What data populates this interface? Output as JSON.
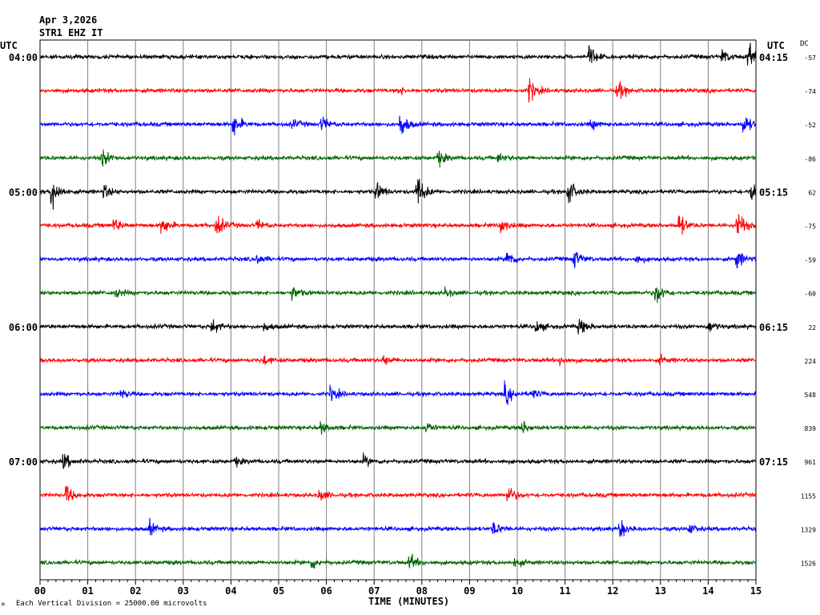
{
  "header": {
    "date": "Apr 3,2026",
    "station": "STR1 EHZ IT",
    "utc_left": "UTC",
    "utc_right": "UTC",
    "dc_label": "DC"
  },
  "footer": {
    "note": "Each Vertical Division = 25000.00 microvolts",
    "corner_mark": "M"
  },
  "chart_data": {
    "type": "line",
    "title": "STR1 EHZ IT",
    "xlabel": "TIME (MINUTES)",
    "ylabel": "",
    "x_ticks": [
      "00",
      "01",
      "02",
      "03",
      "04",
      "05",
      "06",
      "07",
      "08",
      "09",
      "10",
      "11",
      "12",
      "13",
      "14",
      "15"
    ],
    "xlim": [
      0,
      15
    ],
    "grid": true,
    "colors": [
      "#000000",
      "#ff0000",
      "#0000ff",
      "#006400"
    ],
    "left_time_labels": [
      "04:00",
      "",
      "",
      "",
      "05:00",
      "",
      "",
      "",
      "06:00",
      "",
      "",
      "",
      "07:00",
      "",
      "",
      ""
    ],
    "right_time_labels": [
      "04:15",
      "",
      "",
      "",
      "05:15",
      "",
      "",
      "",
      "06:15",
      "",
      "",
      "",
      "07:15",
      "",
      "",
      ""
    ],
    "dc_offsets": [
      "-57",
      "-74",
      "-52",
      "-86",
      "62",
      "-75",
      "-59",
      "-60",
      "22",
      "224",
      "548",
      "839",
      "961",
      "1155",
      "1329",
      "1526"
    ],
    "series": [
      {
        "events": [
          [
            11.5,
            2.2
          ],
          [
            14.3,
            1.4
          ],
          [
            14.85,
            2.6
          ]
        ]
      },
      {
        "events": [
          [
            10.25,
            2.2
          ],
          [
            12.1,
            2.0
          ],
          [
            7.5,
            0.8
          ]
        ]
      },
      {
        "events": [
          [
            4.05,
            2.4
          ],
          [
            5.9,
            1.5
          ],
          [
            7.55,
            2.6
          ],
          [
            11.55,
            1.0
          ],
          [
            14.75,
            2.0
          ],
          [
            5.3,
            0.8
          ]
        ]
      },
      {
        "events": [
          [
            1.3,
            1.8
          ],
          [
            8.35,
            1.5
          ],
          [
            9.6,
            0.9
          ]
        ]
      },
      {
        "events": [
          [
            0.25,
            3.5
          ],
          [
            1.35,
            1.2
          ],
          [
            7.05,
            1.8
          ],
          [
            7.9,
            3.5
          ],
          [
            11.05,
            3.0
          ],
          [
            14.9,
            2.2
          ]
        ]
      },
      {
        "events": [
          [
            1.55,
            1.4
          ],
          [
            2.55,
            2.0
          ],
          [
            3.7,
            2.4
          ],
          [
            4.55,
            1.0
          ],
          [
            9.65,
            1.6
          ],
          [
            13.4,
            2.2
          ],
          [
            14.6,
            3.5
          ]
        ]
      },
      {
        "events": [
          [
            4.55,
            1.0
          ],
          [
            9.8,
            1.8
          ],
          [
            11.2,
            1.8
          ],
          [
            12.5,
            1.0
          ],
          [
            14.6,
            2.0
          ]
        ]
      },
      {
        "events": [
          [
            1.6,
            0.9
          ],
          [
            5.3,
            1.2
          ],
          [
            8.5,
            0.9
          ],
          [
            12.9,
            2.4
          ]
        ]
      },
      {
        "events": [
          [
            3.6,
            1.5
          ],
          [
            4.7,
            0.8
          ],
          [
            10.4,
            1.2
          ],
          [
            11.3,
            1.6
          ],
          [
            14.0,
            1.2
          ]
        ]
      },
      {
        "events": [
          [
            4.7,
            0.8
          ],
          [
            7.2,
            0.8
          ],
          [
            10.9,
            0.8
          ],
          [
            13.0,
            0.7
          ]
        ]
      },
      {
        "events": [
          [
            1.7,
            0.9
          ],
          [
            6.1,
            1.5
          ],
          [
            9.75,
            2.0
          ],
          [
            10.3,
            0.9
          ]
        ]
      },
      {
        "events": [
          [
            5.9,
            1.0
          ],
          [
            8.1,
            1.1
          ],
          [
            10.1,
            1.3
          ]
        ]
      },
      {
        "events": [
          [
            0.5,
            1.6
          ],
          [
            4.1,
            0.8
          ],
          [
            6.8,
            1.0
          ]
        ]
      },
      {
        "events": [
          [
            0.55,
            1.8
          ],
          [
            5.85,
            1.2
          ],
          [
            9.8,
            2.0
          ]
        ]
      },
      {
        "events": [
          [
            2.3,
            1.3
          ],
          [
            9.5,
            1.4
          ],
          [
            12.15,
            1.8
          ],
          [
            13.6,
            0.9
          ]
        ]
      },
      {
        "events": [
          [
            5.7,
            1.2
          ],
          [
            7.75,
            1.6
          ],
          [
            9.95,
            0.8
          ]
        ]
      }
    ]
  }
}
